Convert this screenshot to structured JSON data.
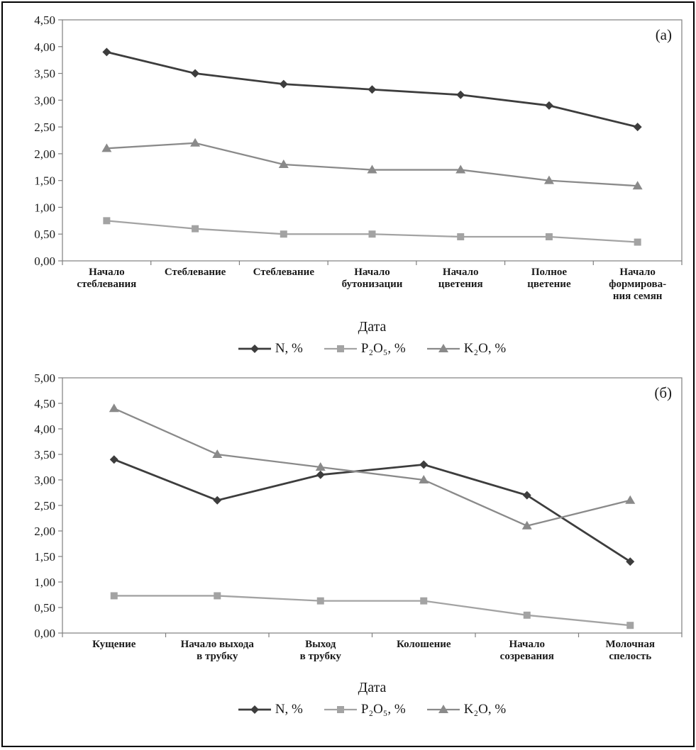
{
  "figure": {
    "frame_color": "#7f7f7f",
    "background": "#ffffff"
  },
  "chart_data": [
    {
      "type": "line",
      "panel_label": "(а)",
      "xlabel": "Дата",
      "ylim": [
        0,
        4.5
      ],
      "ytick_step": 0.5,
      "grid": false,
      "legend_position": "bottom",
      "categories": [
        [
          "Начало",
          "стеблевания"
        ],
        [
          "Стеблевание"
        ],
        [
          "Стеблевание"
        ],
        [
          "Начало",
          "бутонизации"
        ],
        [
          "Начало",
          "цветения"
        ],
        [
          "Полное",
          "цветение"
        ],
        [
          "Начало",
          "формирова-",
          "ния семян"
        ]
      ],
      "series": [
        {
          "name": "N, %",
          "marker": "diamond",
          "color": "#3d3d3d",
          "values": [
            3.9,
            3.5,
            3.3,
            3.2,
            3.1,
            2.9,
            2.5
          ]
        },
        {
          "name": "P₂O₅, %",
          "marker": "square",
          "color": "#a3a3a3",
          "values": [
            0.75,
            0.6,
            0.5,
            0.5,
            0.45,
            0.45,
            0.35
          ]
        },
        {
          "name": "K₂O, %",
          "marker": "triangle",
          "color": "#8a8a8a",
          "values": [
            2.1,
            2.2,
            1.8,
            1.7,
            1.7,
            1.5,
            1.4
          ]
        }
      ]
    },
    {
      "type": "line",
      "panel_label": "(б)",
      "xlabel": "Дата",
      "ylim": [
        0,
        5.0
      ],
      "ytick_step": 0.5,
      "grid": false,
      "legend_position": "bottom",
      "categories": [
        [
          "Кущение"
        ],
        [
          "Начало выхода",
          "в трубку"
        ],
        [
          "Выход",
          "в трубку"
        ],
        [
          "Колошение"
        ],
        [
          "Начало",
          "созревания"
        ],
        [
          "Молочная",
          "спелость"
        ]
      ],
      "series": [
        {
          "name": "N, %",
          "marker": "diamond",
          "color": "#3d3d3d",
          "values": [
            3.4,
            2.6,
            3.1,
            3.3,
            2.7,
            1.4
          ]
        },
        {
          "name": "P₂O₅, %",
          "marker": "square",
          "color": "#a3a3a3",
          "values": [
            0.73,
            0.73,
            0.63,
            0.63,
            0.35,
            0.15
          ]
        },
        {
          "name": "K₂O, %",
          "marker": "triangle",
          "color": "#8a8a8a",
          "values": [
            4.4,
            3.5,
            3.25,
            3.0,
            2.1,
            2.6
          ]
        }
      ]
    }
  ]
}
